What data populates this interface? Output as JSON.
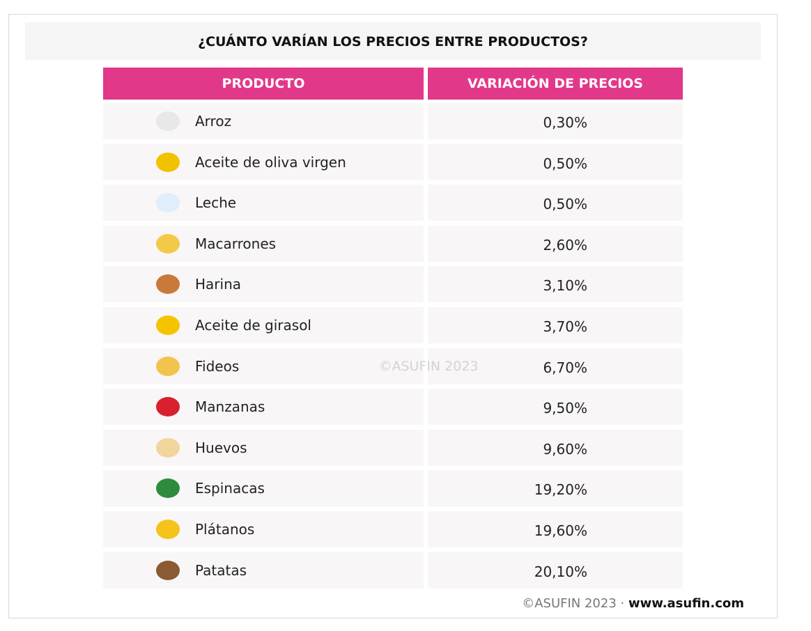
{
  "title": "¿CUÁNTO VARÍAN LOS PRECIOS ENTRE PRODUCTOS?",
  "table": {
    "header": [
      "PRODUCTO",
      "VARIACIÓN DE PRECIOS"
    ],
    "rows": [
      [
        "Arroz",
        "0,30%"
      ],
      [
        "Aceite de oliva virgen",
        "0,50%"
      ],
      [
        "Leche",
        "0,50%"
      ],
      [
        "Macarrones",
        "2,60%"
      ],
      [
        "Harina",
        "3,10%"
      ],
      [
        "Aceite de girasol",
        "3,70%"
      ],
      [
        "Fideos",
        "6,70%"
      ],
      [
        "Manzanas",
        "9,50%"
      ],
      [
        "Huevos",
        "9,60%"
      ],
      [
        "Espinacas",
        "19,20%"
      ],
      [
        "Plátanos",
        "19,60%"
      ],
      [
        "Patatas",
        "20,10%"
      ]
    ]
  },
  "watermark": "©ASUFIN 2023",
  "footer": {
    "credit": "©ASUFIN 2023 ·",
    "url": "www.asufin.com"
  }
}
